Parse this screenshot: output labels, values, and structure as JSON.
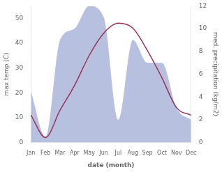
{
  "chart_data": {
    "type": "line",
    "categories": [
      "Jan",
      "Feb",
      "Mar",
      "Apr",
      "May",
      "Jun",
      "Jul",
      "Aug",
      "Sep",
      "Oct",
      "Nov",
      "Dec"
    ],
    "xlabel": "date (month)",
    "ylabel": "max temp (C)",
    "y2label": "med. precipitation (kg/m2)",
    "series": [
      {
        "type": "area",
        "color": "#b8c0e0",
        "axis": "y2",
        "values": [
          4.5,
          0.5,
          9.0,
          10.0,
          12.0,
          11.0,
          2.0,
          9.0,
          7.0,
          7.0,
          3.0,
          2.0
        ]
      },
      {
        "type": "line",
        "color": "#993355",
        "values": [
          11,
          2,
          13,
          23,
          35,
          44,
          48,
          46,
          37,
          26,
          14,
          11
        ]
      }
    ],
    "ylim": [
      0,
      55
    ],
    "yticks": [
      0,
      10,
      20,
      30,
      40,
      50
    ],
    "y2lim": [
      0,
      12
    ],
    "y2ticks": [
      0,
      2,
      4,
      6,
      8,
      10,
      12
    ],
    "grid": false
  }
}
